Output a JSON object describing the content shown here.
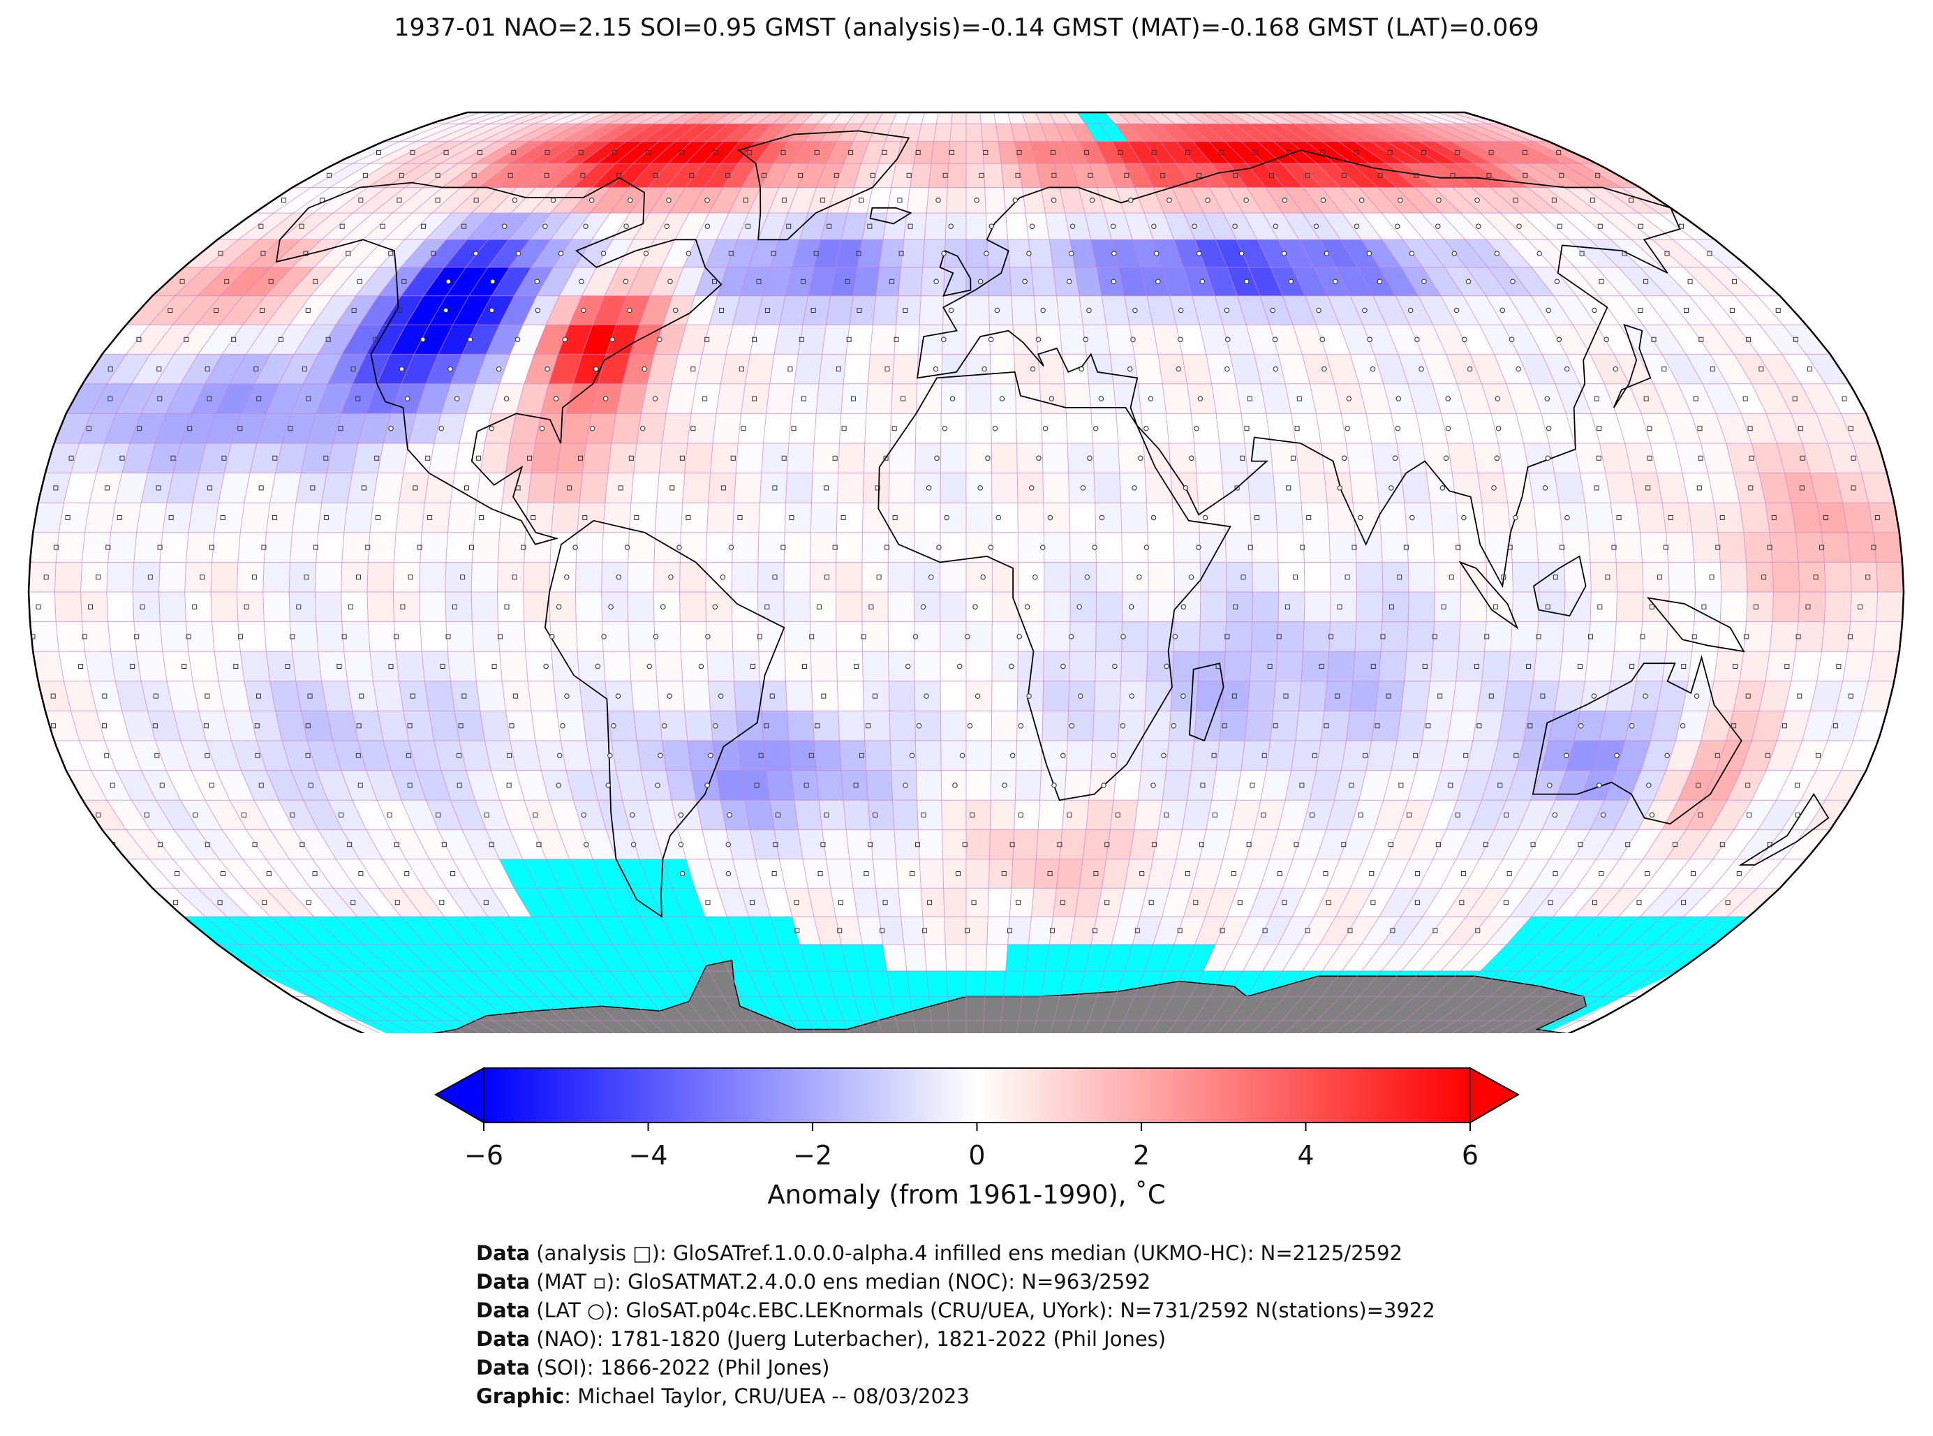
{
  "title": "1937-01 NAO=2.15 SOI=0.95 GMST (analysis)=-0.14 GMST (MAT)=-0.168 GMST (LAT)=0.069",
  "colors": {
    "ocean_background": "#ffffff",
    "missing_data": "#00ffff",
    "antarctica_land": "#808080",
    "grid_lines": "#c97fc9",
    "cold_extreme": "#0000ff",
    "warm_extreme": "#ff0000",
    "neutral": "#ffffff"
  },
  "map": {
    "projection": "Robinson",
    "grid": "5-degree lat/lon boxes",
    "symbols": {
      "analysis": "square",
      "MAT": "small filled square",
      "LAT": "circle (station)"
    },
    "anomaly_regions": [
      {
        "region": "Arctic Canada / Greenland coast",
        "anomaly_c": 6
      },
      {
        "region": "Arctic Siberia",
        "anomaly_c": 6
      },
      {
        "region": "Western North America",
        "anomaly_c": -6
      },
      {
        "region": "Eastern United States",
        "anomaly_c": 5
      },
      {
        "region": "Central Asia band",
        "anomaly_c": -4
      },
      {
        "region": "Western Australia",
        "anomaly_c": -3
      },
      {
        "region": "Southern Ocean (missing)",
        "anomaly_c": null
      }
    ]
  },
  "colorbar": {
    "ticks": [
      "−6",
      "−4",
      "−2",
      "0",
      "2",
      "4",
      "6"
    ],
    "tick_values": [
      -6,
      -4,
      -2,
      0,
      2,
      4,
      6
    ],
    "extend": "both",
    "label": "Anomaly (from 1961-1990), ˚C"
  },
  "credits": [
    {
      "bold": "Data",
      "text": " (analysis □): GloSATref.1.0.0.0-alpha.4 infilled ens median (UKMO-HC): N=2125/2592"
    },
    {
      "bold": "Data",
      "text": " (MAT ▫): GloSATMAT.2.4.0.0 ens median (NOC): N=963/2592"
    },
    {
      "bold": "Data",
      "text": " (LAT ○): GloSAT.p04c.EBC.LEKnormals (CRU/UEA, UYork): N=731/2592 N(stations)=3922"
    },
    {
      "bold": "Data",
      "text": " (NAO): 1781-1820 (Juerg Luterbacher), 1821-2022 (Phil Jones)"
    },
    {
      "bold": "Data",
      "text": " (SOI): 1866-2022 (Phil Jones)"
    },
    {
      "bold": "Graphic",
      "text": ": Michael Taylor, CRU/UEA -- 08/03/2023"
    }
  ]
}
